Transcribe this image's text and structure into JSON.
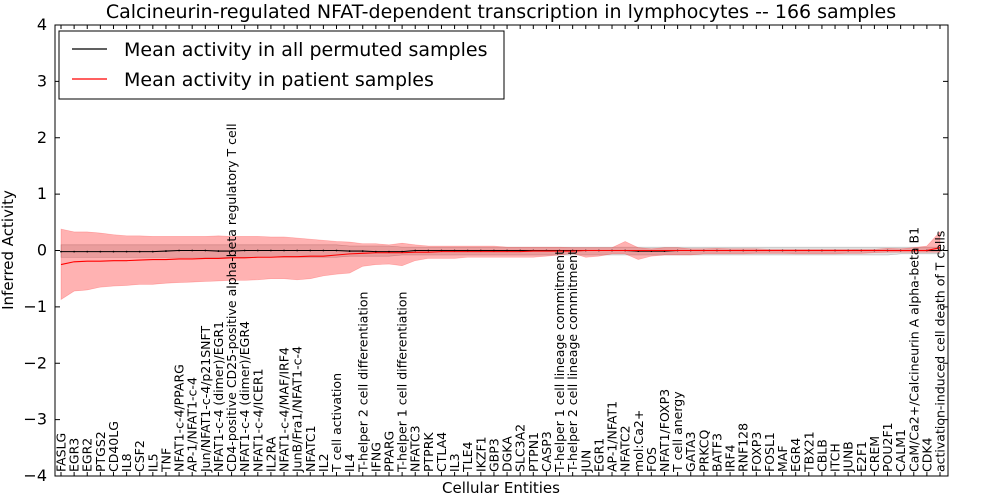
{
  "chart_data": {
    "type": "line",
    "title": "Calcineurin-regulated NFAT-dependent transcription in lymphocytes -- 166 samples",
    "xlabel": "Cellular Entities",
    "ylabel": "Inferred Activity",
    "ylim": [
      -4,
      4
    ],
    "yticks": [
      -4,
      -3,
      -2,
      -1,
      0,
      1,
      2,
      3,
      4
    ],
    "ytick_labels": [
      "−4",
      "−3",
      "−2",
      "−1",
      "0",
      "1",
      "2",
      "3",
      "4"
    ],
    "grid": false,
    "legend_position": "top-left",
    "legend": [
      {
        "label": "Mean activity in all permuted samples",
        "color": "#000000"
      },
      {
        "label": "Mean activity in patient samples",
        "color": "#ff0000"
      }
    ],
    "categories": [
      "FASLG",
      "EGR3",
      "EGR2",
      "PTGS2",
      "CD40LG",
      "IL8",
      "CSF2",
      "IL5",
      "TNF",
      "NFAT1-c-4/PPARG",
      "AP-1/NFAT1-c-4",
      "Jun/NFAT1-c-4/p21SNFT",
      "NFAT1-c-4 (dimer)/EGR1",
      "CD4-positive CD25-positive alpha-beta regulatory T cell",
      "NFAT1-c-4 (dimer)/EGR4",
      "NFAT1-c-4/ICER1",
      "IL2RA",
      "NFAT1-c-4/MAF/IRF4",
      "JunB/Fra1/NFAT1-c-4",
      "NFATC1",
      "IL2",
      "T cell activation",
      "IL4",
      "T-helper 2 cell differentiation",
      "IFNG",
      "PPARG",
      "T-helper 1 cell differentiation",
      "NFATC3",
      "PTPRK",
      "CTLA4",
      "IL3",
      "TLE4",
      "IKZF1",
      "GBP3",
      "DGKA",
      "SLC3A2",
      "PTPN1",
      "CASP3",
      "T-helper 1 cell lineage commitment",
      "T-helper 2 cell lineage commitment",
      "JUN",
      "EGR1",
      "AP-1/NFAT1",
      "NFATC2",
      "mol:Ca2+",
      "FOS",
      "NFAT1/FOXP3",
      "T cell anergy",
      "GATA3",
      "PRKCQ",
      "BATF3",
      "IRF4",
      "RNF128",
      "FOXP3",
      "FOSL1",
      "MAF",
      "EGR4",
      "TBX21",
      "CBLB",
      "ITCH",
      "JUNB",
      "E2F1",
      "CREM",
      "POU2F1",
      "CALM1",
      "CaM/Ca2+/Calcineurin A alpha-beta B1",
      "CDK4",
      "activation-induced cell death of T cells"
    ],
    "series": [
      {
        "name": "Mean activity in all permuted samples",
        "color": "#000000",
        "values": [
          -0.02,
          -0.02,
          -0.02,
          -0.02,
          -0.02,
          -0.02,
          -0.02,
          -0.02,
          -0.01,
          0,
          0,
          0,
          -0.01,
          -0.01,
          0,
          0,
          0,
          0,
          0,
          0,
          0,
          0,
          -0.01,
          -0.01,
          -0.02,
          -0.02,
          -0.02,
          0,
          0,
          0,
          0,
          0,
          0,
          0,
          0,
          0,
          0,
          0,
          0,
          0,
          0,
          0,
          0,
          0,
          -0.01,
          -0.01,
          -0.01,
          0,
          0,
          0,
          0,
          0,
          0,
          0,
          0,
          0,
          0,
          0,
          0,
          0,
          0,
          0,
          0,
          0,
          0,
          0,
          0,
          0
        ],
        "band_lower": [
          -0.12,
          -0.12,
          -0.12,
          -0.12,
          -0.12,
          -0.12,
          -0.12,
          -0.12,
          -0.12,
          -0.12,
          -0.12,
          -0.12,
          -0.12,
          -0.12,
          -0.12,
          -0.12,
          -0.12,
          -0.12,
          -0.12,
          -0.12,
          -0.12,
          -0.12,
          -0.1,
          -0.1,
          -0.1,
          -0.1,
          -0.08,
          -0.08,
          -0.08,
          -0.08,
          -0.08,
          -0.08,
          -0.08,
          -0.08,
          -0.08,
          -0.08,
          -0.08,
          -0.08,
          -0.08,
          -0.08,
          -0.08,
          -0.08,
          -0.08,
          -0.08,
          -0.08,
          -0.08,
          -0.08,
          -0.08,
          -0.08,
          -0.08,
          -0.08,
          -0.08,
          -0.08,
          -0.08,
          -0.08,
          -0.08,
          -0.08,
          -0.08,
          -0.08,
          -0.08,
          -0.08,
          -0.08,
          -0.08,
          -0.08,
          -0.06,
          -0.06,
          -0.06,
          -0.06
        ],
        "band_upper": [
          0.1,
          0.1,
          0.1,
          0.1,
          0.1,
          0.1,
          0.1,
          0.1,
          0.1,
          0.1,
          0.1,
          0.1,
          0.1,
          0.1,
          0.1,
          0.1,
          0.1,
          0.1,
          0.1,
          0.1,
          0.1,
          0.1,
          0.08,
          0.08,
          0.08,
          0.08,
          0.06,
          0.06,
          0.06,
          0.06,
          0.06,
          0.06,
          0.06,
          0.06,
          0.06,
          0.06,
          0.06,
          0.06,
          0.06,
          0.06,
          0.06,
          0.06,
          0.06,
          0.06,
          0.06,
          0.06,
          0.06,
          0.06,
          0.06,
          0.06,
          0.06,
          0.06,
          0.06,
          0.06,
          0.06,
          0.06,
          0.06,
          0.06,
          0.06,
          0.06,
          0.06,
          0.06,
          0.06,
          0.06,
          0.06,
          0.06,
          0.06,
          0.06
        ]
      },
      {
        "name": "Mean activity in patient samples",
        "color": "#ff0000",
        "values": [
          -0.25,
          -0.2,
          -0.19,
          -0.19,
          -0.18,
          -0.18,
          -0.17,
          -0.16,
          -0.16,
          -0.15,
          -0.15,
          -0.14,
          -0.14,
          -0.13,
          -0.13,
          -0.12,
          -0.12,
          -0.11,
          -0.11,
          -0.1,
          -0.1,
          -0.08,
          -0.06,
          -0.05,
          -0.04,
          -0.04,
          -0.04,
          -0.03,
          -0.03,
          -0.02,
          -0.02,
          -0.02,
          -0.02,
          -0.02,
          -0.02,
          -0.02,
          -0.01,
          -0.01,
          -0.01,
          -0.01,
          0,
          0,
          0,
          0,
          0,
          0,
          0,
          0,
          0,
          0,
          0,
          0,
          0,
          0,
          0,
          0,
          0,
          0,
          0,
          0,
          0,
          0,
          0,
          0,
          0,
          0,
          0,
          0.05
        ],
        "band_lower": [
          -0.87,
          -0.72,
          -0.7,
          -0.65,
          -0.63,
          -0.62,
          -0.6,
          -0.6,
          -0.58,
          -0.57,
          -0.56,
          -0.55,
          -0.54,
          -0.53,
          -0.53,
          -0.52,
          -0.5,
          -0.5,
          -0.52,
          -0.5,
          -0.45,
          -0.42,
          -0.4,
          -0.28,
          -0.25,
          -0.24,
          -0.27,
          -0.18,
          -0.14,
          -0.14,
          -0.14,
          -0.12,
          -0.12,
          -0.12,
          -0.12,
          -0.12,
          -0.12,
          -0.1,
          -0.08,
          -0.05,
          -0.12,
          -0.1,
          -0.06,
          -0.06,
          -0.16,
          -0.1,
          -0.08,
          -0.08,
          -0.08,
          -0.06,
          -0.06,
          -0.06,
          -0.06,
          -0.05,
          -0.05,
          -0.05,
          -0.06,
          -0.06,
          -0.06,
          -0.06,
          -0.05,
          -0.05,
          -0.04,
          -0.03,
          -0.03,
          -0.03,
          -0.03,
          -0.03
        ],
        "band_upper": [
          0.38,
          0.33,
          0.33,
          0.31,
          0.28,
          0.26,
          0.26,
          0.25,
          0.25,
          0.25,
          0.25,
          0.25,
          0.26,
          0.25,
          0.25,
          0.25,
          0.24,
          0.24,
          0.22,
          0.2,
          0.18,
          0.16,
          0.15,
          0.12,
          0.12,
          0.1,
          0.13,
          0.1,
          0.08,
          0.08,
          0.08,
          0.08,
          0.08,
          0.08,
          0.06,
          0.06,
          0.06,
          0.06,
          0.06,
          0.05,
          0.05,
          0.05,
          0.05,
          0.16,
          0.05,
          0.03,
          0.05,
          0.05,
          0.03,
          0.03,
          0.04,
          0.03,
          0.03,
          0.03,
          0.02,
          0.02,
          0.02,
          0.02,
          0.02,
          0.02,
          0.02,
          0.02,
          0.02,
          0.04,
          0.03,
          0.05,
          0.08,
          0.33
        ]
      }
    ]
  }
}
